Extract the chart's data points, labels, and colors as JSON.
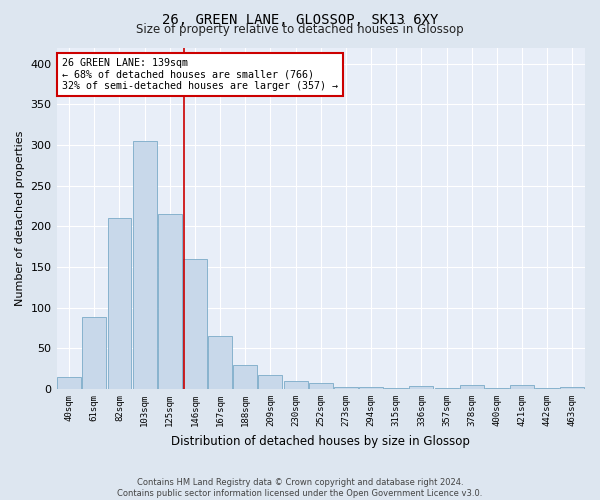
{
  "title_line1": "26, GREEN LANE, GLOSSOP, SK13 6XY",
  "title_line2": "Size of property relative to detached houses in Glossop",
  "xlabel": "Distribution of detached houses by size in Glossop",
  "ylabel": "Number of detached properties",
  "bar_color": "#c8d8ea",
  "bar_edge_color": "#7aaac8",
  "background_color": "#e8eef8",
  "grid_color": "#ffffff",
  "categories": [
    "40sqm",
    "61sqm",
    "82sqm",
    "103sqm",
    "125sqm",
    "146sqm",
    "167sqm",
    "188sqm",
    "209sqm",
    "230sqm",
    "252sqm",
    "273sqm",
    "294sqm",
    "315sqm",
    "336sqm",
    "357sqm",
    "378sqm",
    "400sqm",
    "421sqm",
    "442sqm",
    "463sqm"
  ],
  "values": [
    15,
    88,
    210,
    305,
    215,
    160,
    65,
    30,
    17,
    10,
    7,
    3,
    2,
    1,
    4,
    1,
    5,
    1,
    5,
    1,
    3
  ],
  "ylim": [
    0,
    420
  ],
  "yticks": [
    0,
    50,
    100,
    150,
    200,
    250,
    300,
    350,
    400
  ],
  "vline_x": 4.57,
  "annotation_text": "26 GREEN LANE: 139sqm\n← 68% of detached houses are smaller (766)\n32% of semi-detached houses are larger (357) →",
  "annotation_box_color": "#ffffff",
  "annotation_box_edge": "#cc0000",
  "vline_color": "#cc0000",
  "footer_line1": "Contains HM Land Registry data © Crown copyright and database right 2024.",
  "footer_line2": "Contains public sector information licensed under the Open Government Licence v3.0."
}
